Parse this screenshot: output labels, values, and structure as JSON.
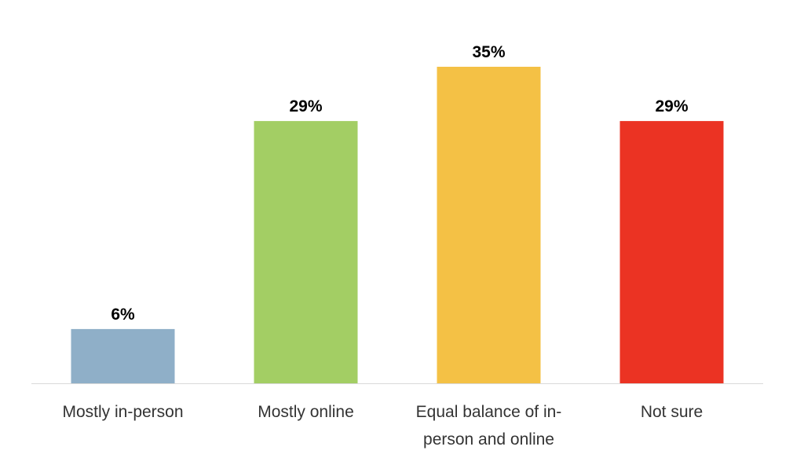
{
  "chart_data": {
    "type": "bar",
    "title": "",
    "xlabel": "",
    "ylabel": "",
    "ylim": [
      0,
      35
    ],
    "grid": false,
    "legend": "none",
    "categories": [
      "Mostly in-person",
      "Mostly online",
      "Equal balance of in-person and online",
      "Not sure"
    ],
    "category_label_lines": [
      [
        "Mostly in-person"
      ],
      [
        "Mostly online"
      ],
      [
        "Equal balance of in-",
        "person and online"
      ],
      [
        "Not sure"
      ]
    ],
    "values": [
      6,
      29,
      35,
      29
    ],
    "value_labels": [
      "6%",
      "29%",
      "35%",
      "29%"
    ],
    "colors": [
      "#8FAFC8",
      "#A3CE64",
      "#F4C145",
      "#EB3323"
    ]
  }
}
